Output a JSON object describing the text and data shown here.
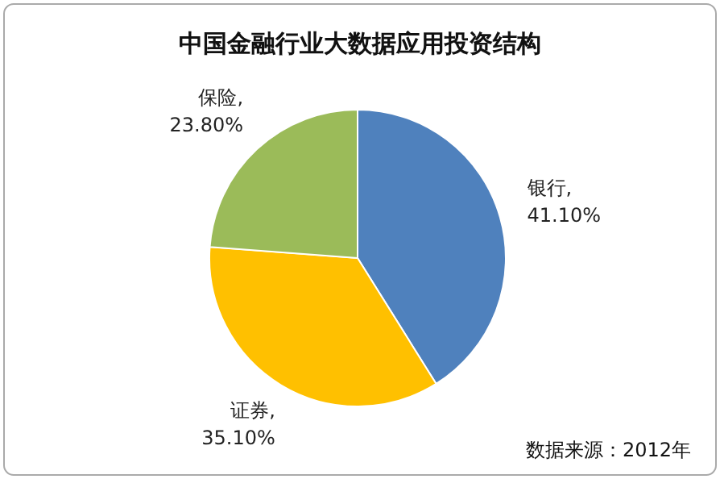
{
  "chart_data": {
    "type": "pie",
    "title": "中国金融行业大数据应用投资结构",
    "categories": [
      "银行",
      "证券",
      "保险"
    ],
    "values": [
      41.1,
      35.1,
      23.8
    ],
    "value_labels": [
      ",\n41.10%",
      ",\n35.10%",
      ",\n23.80%"
    ],
    "colors": [
      "#4f81bd",
      "#ffc000",
      "#9bbb59"
    ],
    "legend": false,
    "annotations": [
      "数据来源：2012年"
    ]
  }
}
